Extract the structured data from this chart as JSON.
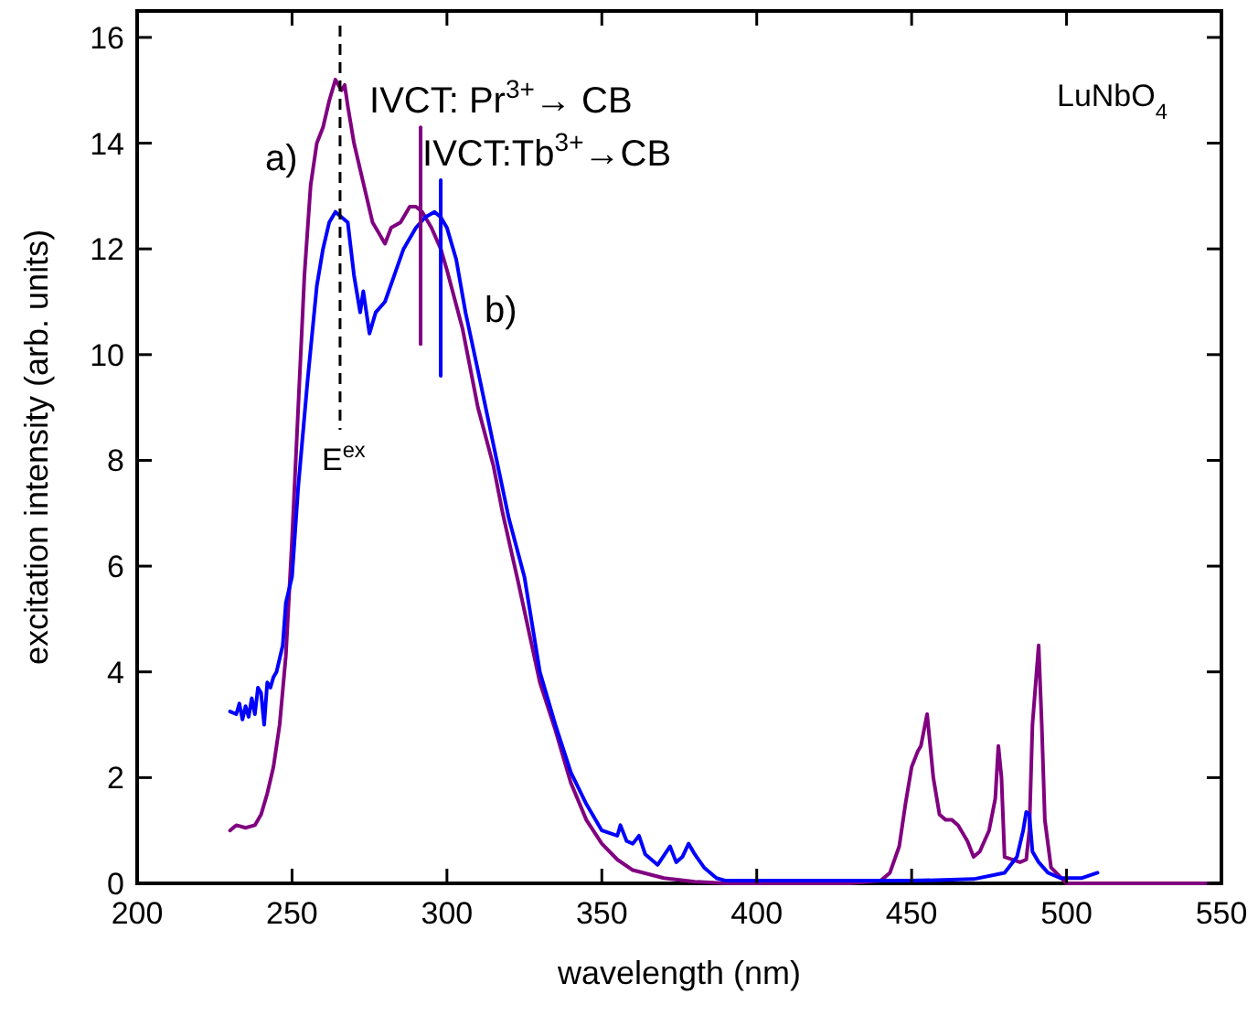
{
  "chart_data": {
    "type": "line",
    "xlabel": "wavelength (nm)",
    "ylabel": "excitation intensity  (arb. units)",
    "xlim": [
      200,
      550
    ],
    "xticks": [
      200,
      250,
      300,
      350,
      400,
      450,
      500,
      550
    ],
    "ylim": [
      0,
      16.5
    ],
    "yticks": [
      0,
      2,
      4,
      6,
      8,
      10,
      12,
      14,
      16
    ],
    "grid": false,
    "marker": "none",
    "line_style": "solid",
    "series": [
      {
        "color": "#800080",
        "x": [
          230,
          232,
          235,
          238,
          240,
          242,
          244,
          246,
          248,
          250,
          252,
          254,
          256,
          258,
          260,
          262,
          264,
          266,
          267,
          268,
          270,
          272,
          274,
          276,
          278,
          280,
          282,
          285,
          288,
          290,
          292,
          295,
          298,
          300,
          305,
          310,
          315,
          318,
          323,
          330,
          335,
          340,
          345,
          350,
          355,
          360,
          370,
          380,
          390,
          430,
          440,
          443,
          446,
          448,
          450,
          452,
          453,
          455,
          457,
          459,
          461,
          463,
          465,
          468,
          470,
          472,
          475,
          477,
          478,
          479,
          480,
          485,
          487,
          488,
          489,
          491,
          492,
          493,
          495,
          500,
          546
        ],
        "values": [
          1.0,
          1.1,
          1.05,
          1.1,
          1.3,
          1.7,
          2.2,
          3.0,
          4.3,
          6.5,
          9.0,
          11.5,
          13.2,
          14.0,
          14.3,
          14.8,
          15.2,
          15.0,
          15.1,
          14.7,
          14.0,
          13.5,
          13.0,
          12.5,
          12.3,
          12.1,
          12.4,
          12.5,
          12.8,
          12.8,
          12.7,
          12.4,
          12.0,
          11.6,
          10.5,
          9.0,
          7.9,
          7.0,
          5.7,
          3.8,
          2.9,
          1.9,
          1.2,
          0.75,
          0.45,
          0.25,
          0.1,
          0.03,
          0.0,
          0.0,
          0.05,
          0.2,
          0.7,
          1.5,
          2.2,
          2.5,
          2.6,
          3.2,
          2.0,
          1.3,
          1.2,
          1.2,
          1.1,
          0.8,
          0.5,
          0.6,
          1.0,
          1.6,
          2.6,
          2.0,
          0.5,
          0.4,
          0.45,
          1.0,
          3.0,
          4.5,
          3.0,
          1.2,
          0.3,
          0.0,
          0.0
        ]
      },
      {
        "color": "#0000ff",
        "x": [
          230,
          232,
          233,
          234,
          235,
          236,
          237,
          238,
          239,
          240,
          241,
          242,
          243,
          244,
          245,
          247,
          248,
          250,
          252,
          255,
          258,
          260,
          262,
          264,
          266,
          268,
          270,
          272,
          273,
          275,
          277,
          280,
          283,
          286,
          290,
          293,
          296,
          298,
          300,
          303,
          306,
          310,
          315,
          320,
          325,
          330,
          335,
          340,
          345,
          350,
          355,
          356,
          358,
          360,
          362,
          364,
          368,
          372,
          374,
          376,
          378,
          380,
          383,
          387,
          390,
          420,
          450,
          470,
          480,
          484,
          486,
          487,
          488,
          489,
          491,
          494,
          498,
          505,
          510
        ],
        "values": [
          3.25,
          3.2,
          3.4,
          3.1,
          3.35,
          3.15,
          3.5,
          3.2,
          3.7,
          3.6,
          3.0,
          3.8,
          3.7,
          3.9,
          4.0,
          4.5,
          5.3,
          5.8,
          7.5,
          9.5,
          11.3,
          12.0,
          12.5,
          12.7,
          12.6,
          12.5,
          11.5,
          10.8,
          11.2,
          10.4,
          10.8,
          11.0,
          11.5,
          12.0,
          12.4,
          12.6,
          12.7,
          12.6,
          12.4,
          11.8,
          10.8,
          9.7,
          8.3,
          6.9,
          5.8,
          4.0,
          3.0,
          2.1,
          1.5,
          1.0,
          0.9,
          1.1,
          0.8,
          0.75,
          0.9,
          0.55,
          0.35,
          0.7,
          0.4,
          0.5,
          0.75,
          0.55,
          0.3,
          0.1,
          0.05,
          0.05,
          0.05,
          0.08,
          0.2,
          0.5,
          1.0,
          1.35,
          1.3,
          0.6,
          0.4,
          0.2,
          0.1,
          0.1,
          0.2
        ]
      },
      {
        "color": "#800080",
        "x": [
          291.5,
          291.5
        ],
        "values": [
          10.2,
          14.3
        ]
      },
      {
        "color": "#0000ff",
        "x": [
          298,
          298
        ],
        "values": [
          9.6,
          13.3
        ]
      }
    ],
    "ref_lines": [
      {
        "axis": "x",
        "value": 265.5,
        "label": "E$^{ex}$",
        "color": "#000000",
        "line_style": "dashed"
      }
    ],
    "annotations": [
      "a)",
      "b)",
      {
        "text": "IVCT: Pr$^{3+}$→ CB",
        "x": 291.5,
        "y": 14.3
      },
      {
        "text": "IVCT:Tb$^{3+}$→CB",
        "x": 298,
        "y": 13.3
      },
      "LuNbO$_{4}$"
    ]
  }
}
